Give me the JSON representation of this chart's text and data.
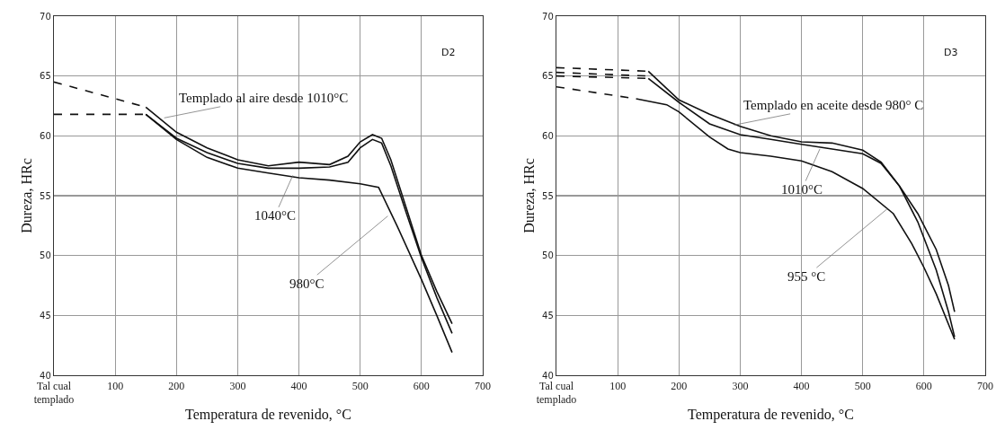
{
  "chart_data": [
    {
      "type": "line",
      "xlabel": "Temperatura de revenido, °C",
      "ylabel": "Dureza, HRc",
      "xlim": [
        0,
        700
      ],
      "xticks": [
        {
          "value": 0,
          "label": "Tal cual\ntemplado"
        },
        100,
        200,
        300,
        400,
        500,
        600,
        700
      ],
      "ylim": [
        40,
        70
      ],
      "yticks": [
        40,
        45,
        50,
        55,
        60,
        65,
        70
      ],
      "grid": true,
      "marker": "none",
      "line_style": "solid",
      "annotations": [
        "D2",
        {
          "text": "Templado al aire desde 1010°C",
          "x": 180,
          "y": 61.5
        },
        {
          "text": "1040°C",
          "x": 390,
          "y": 56.7
        },
        {
          "text": "980°C",
          "x": 545,
          "y": 53.3
        }
      ],
      "series": [
        {
          "color": "#111111",
          "line_style": "dashed",
          "x": [
            0,
            150
          ],
          "values": [
            64.5,
            62.4
          ]
        },
        {
          "color": "#111111",
          "line_style": "dashed",
          "x": [
            0,
            150
          ],
          "values": [
            61.8,
            61.8
          ]
        },
        {
          "color": "#111111",
          "x": [
            150,
            200,
            250,
            300,
            350,
            400,
            450,
            480,
            500,
            520,
            535,
            550,
            575,
            600,
            625,
            650
          ],
          "values": [
            62.4,
            60.3,
            59,
            58,
            57.5,
            57.8,
            57.6,
            58.3,
            59.5,
            60.1,
            59.8,
            58,
            54,
            50,
            47,
            44.3
          ]
        },
        {
          "color": "#111111",
          "x": [
            150,
            200,
            250,
            300,
            350,
            400,
            450,
            480,
            500,
            520,
            535,
            550,
            575,
            600,
            625,
            650
          ],
          "values": [
            61.8,
            59.8,
            58.6,
            57.7,
            57.3,
            57.3,
            57.4,
            57.8,
            59,
            59.7,
            59.4,
            57.5,
            53.6,
            49.8,
            46.5,
            43.5
          ]
        },
        {
          "color": "#111111",
          "x": [
            150,
            200,
            250,
            300,
            350,
            400,
            450,
            500,
            530,
            560,
            600,
            625,
            650
          ],
          "values": [
            61.8,
            59.7,
            58.2,
            57.3,
            56.9,
            56.5,
            56.3,
            56,
            55.7,
            52.5,
            48,
            45,
            41.9
          ]
        }
      ]
    },
    {
      "type": "line",
      "xlabel": "Temperatura de revenido, °C",
      "ylabel": "Dureza, HRc",
      "xlim": [
        0,
        700
      ],
      "xticks": [
        {
          "value": 0,
          "label": "Tal cual\ntemplado"
        },
        100,
        200,
        300,
        400,
        500,
        600,
        700
      ],
      "ylim": [
        40,
        70
      ],
      "yticks": [
        40,
        45,
        50,
        55,
        60,
        65,
        70
      ],
      "grid": true,
      "marker": "none",
      "line_style": "solid",
      "annotations": [
        "D3",
        {
          "text": "Templado en aceite desde 980° C",
          "x": 290,
          "y": 60.9
        },
        {
          "text": "1010°C",
          "x": 430,
          "y": 58.9
        },
        {
          "text": "955 °C",
          "x": 540,
          "y": 53.9
        }
      ],
      "series": [
        {
          "color": "#111111",
          "line_style": "dashed",
          "x": [
            0,
            150
          ],
          "values": [
            65.7,
            65.4
          ]
        },
        {
          "color": "#111111",
          "line_style": "dashed",
          "x": [
            0,
            150
          ],
          "values": [
            65.3,
            65
          ]
        },
        {
          "color": "#111111",
          "line_style": "dashed",
          "x": [
            0,
            150
          ],
          "values": [
            65,
            64.8
          ]
        },
        {
          "color": "#111111",
          "line_style": "dashed",
          "x": [
            0,
            130
          ],
          "values": [
            64.1,
            63.1
          ]
        },
        {
          "color": "#111111",
          "x": [
            150,
            175,
            200,
            250,
            300,
            350,
            400,
            450,
            500,
            530,
            560,
            590,
            620,
            640,
            650
          ],
          "values": [
            65.4,
            64.2,
            63,
            61.8,
            60.8,
            60,
            59.5,
            59.4,
            58.8,
            57.8,
            55.8,
            53.5,
            50.5,
            47.5,
            45.3
          ]
        },
        {
          "color": "#111111",
          "x": [
            150,
            200,
            250,
            300,
            350,
            400,
            450,
            500,
            530,
            560,
            590,
            620,
            640,
            650
          ],
          "values": [
            64.8,
            62.8,
            61,
            60.1,
            59.7,
            59.3,
            58.9,
            58.5,
            57.7,
            55.8,
            52.8,
            48.8,
            45.3,
            43.2
          ]
        },
        {
          "color": "#111111",
          "x": [
            130,
            180,
            200,
            250,
            280,
            300,
            350,
            400,
            450,
            500,
            550,
            580,
            600,
            620,
            650
          ],
          "values": [
            63.1,
            62.6,
            62,
            59.9,
            58.9,
            58.6,
            58.3,
            57.9,
            57,
            55.6,
            53.5,
            51,
            49,
            46.8,
            43
          ]
        }
      ]
    }
  ]
}
